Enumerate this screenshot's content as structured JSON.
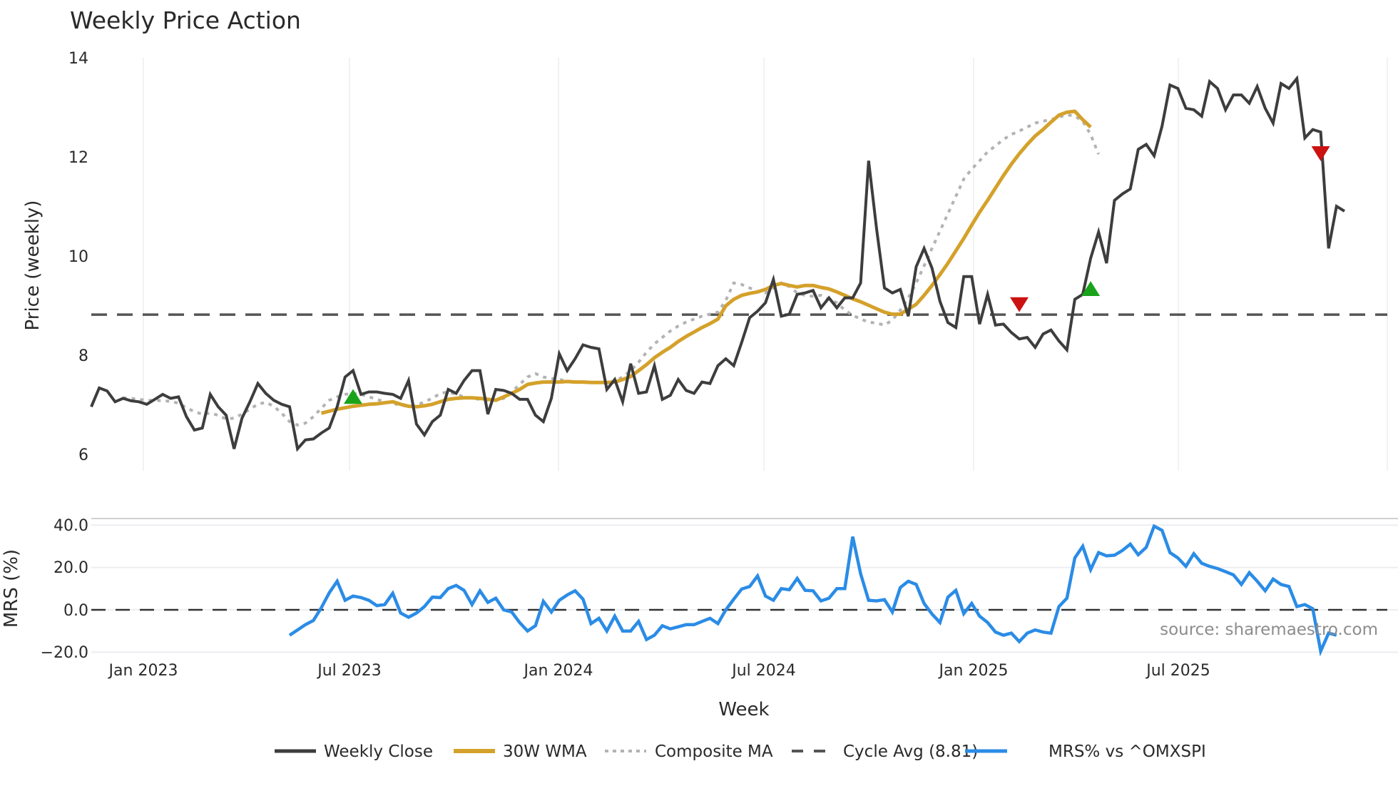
{
  "chart_data": [
    {
      "panel": "price",
      "type": "line",
      "title": "Weekly Price Action",
      "xlabel": "Week",
      "ylabel": "Price (weekly)",
      "ylim": [
        5.7,
        14.2
      ],
      "yticks": [
        6,
        8,
        10,
        12,
        14
      ],
      "xticks": [
        "Jan 2023",
        "Jul 2023",
        "Jan 2024",
        "Jul 2024",
        "Jan 2025",
        "Jul 2025"
      ],
      "grid": true,
      "x_start": "Nov 2022",
      "x_unit": "week",
      "series": [
        {
          "name": "Weekly Close",
          "color": "#3d3d3d",
          "style": "solid",
          "start_index": 0,
          "values": [
            6.95,
            7.33,
            7.27,
            7.05,
            7.12,
            7.07,
            7.05,
            7.0,
            7.1,
            7.2,
            7.12,
            7.15,
            6.75,
            6.48,
            6.52,
            7.2,
            6.95,
            6.78,
            6.1,
            6.72,
            7.05,
            7.42,
            7.22,
            7.08,
            7.0,
            6.95,
            6.1,
            6.28,
            6.3,
            6.42,
            6.52,
            6.95,
            7.55,
            7.68,
            7.2,
            7.25,
            7.25,
            7.22,
            7.2,
            7.12,
            7.48,
            6.6,
            6.38,
            6.65,
            6.78,
            7.3,
            7.22,
            7.48,
            7.68,
            7.68,
            6.8,
            7.3,
            7.28,
            7.22,
            7.1,
            7.1,
            6.78,
            6.65,
            7.12,
            8.02,
            7.68,
            7.92,
            8.2,
            8.15,
            8.12,
            7.3,
            7.5,
            7.05,
            7.82,
            7.22,
            7.25,
            7.78,
            7.1,
            7.18,
            7.5,
            7.28,
            7.22,
            7.45,
            7.42,
            7.78,
            7.92,
            7.78,
            8.25,
            8.75,
            8.88,
            9.05,
            9.52,
            8.78,
            8.82,
            9.22,
            9.25,
            9.3,
            8.95,
            9.15,
            8.95,
            9.15,
            9.15,
            9.45,
            11.92,
            10.55,
            9.35,
            9.25,
            9.32,
            8.78,
            9.78,
            10.15,
            9.75,
            9.08,
            8.65,
            8.55,
            9.58,
            9.58,
            8.62,
            9.22,
            8.6,
            8.62,
            8.45,
            8.32,
            8.35,
            8.15,
            8.42,
            8.5,
            8.28,
            8.1,
            9.12,
            9.22,
            9.95,
            10.48,
            9.85,
            11.12,
            11.25,
            11.35,
            12.15,
            12.25,
            12.02,
            12.62,
            13.45,
            13.38,
            12.98,
            12.95,
            12.82,
            13.52,
            13.38,
            12.95,
            13.25,
            13.25,
            13.08,
            13.42,
            12.98,
            12.68,
            13.48,
            13.38,
            13.58,
            12.38,
            12.55,
            12.5,
            10.15,
            11.0,
            10.9
          ]
        },
        {
          "name": "30W WMA",
          "color": "#d4a12a",
          "style": "solid",
          "start_index": 29,
          "values": [
            6.82,
            6.86,
            6.9,
            6.93,
            6.96,
            6.98,
            7.0,
            7.01,
            7.03,
            7.05,
            7.0,
            6.96,
            6.95,
            6.97,
            7.0,
            7.05,
            7.1,
            7.12,
            7.13,
            7.13,
            7.12,
            7.1,
            7.08,
            7.15,
            7.22,
            7.3,
            7.4,
            7.43,
            7.45,
            7.45,
            7.45,
            7.46,
            7.45,
            7.45,
            7.44,
            7.44,
            7.44,
            7.45,
            7.5,
            7.56,
            7.68,
            7.8,
            7.94,
            8.05,
            8.15,
            8.27,
            8.37,
            8.46,
            8.55,
            8.63,
            8.72,
            8.99,
            9.12,
            9.2,
            9.24,
            9.27,
            9.32,
            9.4,
            9.44,
            9.4,
            9.37,
            9.4,
            9.4,
            9.36,
            9.33,
            9.27,
            9.2,
            9.13,
            9.07,
            9.0,
            8.93,
            8.86,
            8.82,
            8.82,
            8.92,
            9.02,
            9.2,
            9.4,
            9.62,
            9.85,
            10.1,
            10.35,
            10.62,
            10.88,
            11.12,
            11.37,
            11.62,
            11.85,
            12.06,
            12.25,
            12.42,
            12.55,
            12.7,
            12.84,
            12.9,
            12.92,
            12.75,
            12.6
          ]
        },
        {
          "name": "Composite MA",
          "color": "#b3b3b3",
          "style": "dotted",
          "start_index": 4,
          "values": [
            7.13,
            7.12,
            7.1,
            7.08,
            7.08,
            7.07,
            7.06,
            7.02,
            6.93,
            6.85,
            6.8,
            6.82,
            6.78,
            6.7,
            6.72,
            6.8,
            6.9,
            7.0,
            7.04,
            6.96,
            6.82,
            6.65,
            6.58,
            6.62,
            6.75,
            6.92,
            7.08,
            7.15,
            7.2,
            7.22,
            7.2,
            7.15,
            7.1,
            7.05,
            7.02,
            6.98,
            6.96,
            6.98,
            7.05,
            7.12,
            7.22,
            7.25,
            7.2,
            7.15,
            7.12,
            7.1,
            7.08,
            7.08,
            7.12,
            7.25,
            7.4,
            7.55,
            7.62,
            7.55,
            7.52,
            7.5,
            7.47,
            7.45,
            7.45,
            7.44,
            7.44,
            7.43,
            7.47,
            7.55,
            7.68,
            7.85,
            8.05,
            8.22,
            8.35,
            8.48,
            8.58,
            8.66,
            8.72,
            8.78,
            8.82,
            8.86,
            9.1,
            9.45,
            9.42,
            9.35,
            9.28,
            9.25,
            9.35,
            9.45,
            9.38,
            9.25,
            9.2,
            9.18,
            9.2,
            9.12,
            9.05,
            8.9,
            8.8,
            8.72,
            8.66,
            8.64,
            8.6,
            8.7,
            8.9,
            9.15,
            9.45,
            9.8,
            10.15,
            10.5,
            10.85,
            11.2,
            11.55,
            11.75,
            11.92,
            12.1,
            12.22,
            12.35,
            12.45,
            12.52,
            12.6,
            12.68,
            12.72,
            12.75,
            12.8,
            12.85,
            12.82,
            12.72,
            12.45,
            12.05
          ]
        },
        {
          "name": "Cycle Avg (8.81)",
          "color": "#555555",
          "style": "dashed",
          "constant": 8.81
        }
      ],
      "markers": [
        {
          "type": "buy",
          "shape": "triangle-up",
          "color": "#1aa31a",
          "index": 33,
          "value": 7.12
        },
        {
          "type": "sell",
          "shape": "triangle-down",
          "color": "#cc1111",
          "index": 117,
          "value": 9.05
        },
        {
          "type": "buy",
          "shape": "triangle-up",
          "color": "#1aa31a",
          "index": 126,
          "value": 9.3
        },
        {
          "type": "sell",
          "shape": "triangle-down",
          "color": "#cc1111",
          "index": 155,
          "value": 12.1
        }
      ]
    },
    {
      "panel": "mrs",
      "type": "line",
      "ylabel": "MRS (%)",
      "ylim": [
        -22,
        42
      ],
      "yticks": [
        40.0,
        20.0,
        0.0,
        -20.0
      ],
      "ytick_labels": [
        "40.0",
        "20.0",
        "0.0",
        "−20.0"
      ],
      "zero_line": {
        "value": 0,
        "style": "dashed",
        "color": "#333333"
      },
      "series": [
        {
          "name": "MRS% vs ^OMXSPI",
          "color": "#2b8ce6",
          "style": "solid",
          "start_index": 25,
          "values": [
            -12,
            -9.5,
            -7,
            -5,
            1,
            8,
            13.5,
            4.5,
            6.5,
            5.8,
            4.5,
            2,
            2.5,
            7.8,
            -1.5,
            -3.5,
            -1.5,
            1.5,
            6,
            5.8,
            10,
            11.5,
            9.2,
            2.5,
            9,
            3.5,
            5.5,
            0,
            -1,
            -6,
            -10,
            -7.5,
            4,
            -1,
            4.5,
            7,
            9,
            5,
            -6.5,
            -4,
            -10,
            -3,
            -10,
            -10,
            -5.5,
            -14,
            -12,
            -7.5,
            -9,
            -8,
            -7,
            -7,
            -5.5,
            -4,
            -6.5,
            0,
            5,
            9.8,
            11,
            16,
            6.5,
            4.5,
            10,
            9.5,
            14.8,
            9.2,
            9,
            4.2,
            5.5,
            10,
            10,
            34.5,
            17,
            4.5,
            4.2,
            4.8,
            -1,
            10.5,
            13.5,
            12,
            3,
            -2,
            -6,
            6,
            9.2,
            -1.8,
            3,
            -3,
            -6,
            -10.5,
            -12,
            -11,
            -15,
            -11,
            -9.5,
            -10.5,
            -11,
            1.5,
            5.5,
            24.5,
            30,
            19,
            27,
            25.5,
            25.8,
            28,
            31,
            26,
            29.5,
            39.5,
            37.5,
            27,
            24.5,
            20.5,
            26.5,
            22,
            20.5,
            19.5,
            18,
            16.5,
            12,
            17.5,
            13.5,
            9,
            14.5,
            12,
            11,
            1.5,
            2.5,
            0.5,
            -19.5,
            -11,
            -12
          ]
        }
      ]
    }
  ],
  "header": {
    "title": "Weekly Price Action"
  },
  "axes": {
    "price_ylabel": "Price (weekly)",
    "mrs_ylabel": "MRS (%)",
    "xlabel": "Week",
    "price_yticks": [
      "6",
      "8",
      "10",
      "12",
      "14"
    ],
    "mrs_yticks": [
      "40.0",
      "20.0",
      "0.0",
      "−20.0"
    ],
    "xticks": [
      "Jan 2023",
      "Jul 2023",
      "Jan 2024",
      "Jul 2024",
      "Jan 2025",
      "Jul 2025"
    ]
  },
  "legend": {
    "items": [
      {
        "label": "Weekly Close",
        "color": "#3d3d3d",
        "style": "solid"
      },
      {
        "label": "30W WMA",
        "color": "#d4a12a",
        "style": "solid"
      },
      {
        "label": "Composite MA",
        "color": "#b3b3b3",
        "style": "dotted"
      },
      {
        "label": "Cycle Avg (8.81)",
        "color": "#555555",
        "style": "dashed"
      },
      {
        "label": "MRS% vs ^OMXSPI",
        "color": "#2b8ce6",
        "style": "solid"
      }
    ]
  },
  "annotation": {
    "source": "source: sharemaestro.com"
  }
}
